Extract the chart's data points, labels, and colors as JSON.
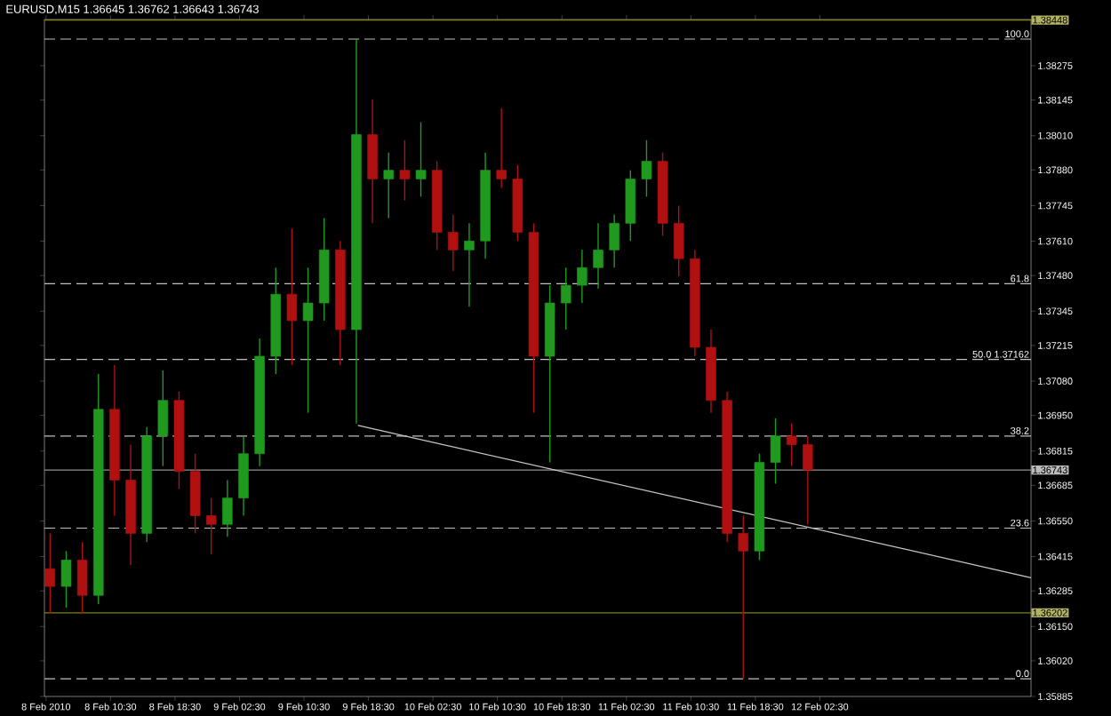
{
  "chart_data": {
    "type": "candlestick",
    "title": "EURUSD,M15  1.36645 1.36762 1.36643 1.36743",
    "x": [
      "2010-02-08T03:00",
      "2010-02-08T05:00",
      "2010-02-08T07:00",
      "2010-02-08T09:00",
      "2010-02-08T11:00",
      "2010-02-08T13:00",
      "2010-02-08T15:00",
      "2010-02-08T17:00",
      "2010-02-08T19:00",
      "2010-02-08T21:00",
      "2010-02-08T23:00",
      "2010-02-09T01:00",
      "2010-02-09T03:00",
      "2010-02-09T05:00",
      "2010-02-09T07:00",
      "2010-02-09T09:00",
      "2010-02-09T11:00",
      "2010-02-09T13:00",
      "2010-02-09T15:00",
      "2010-02-09T17:00",
      "2010-02-09T19:00",
      "2010-02-09T21:00",
      "2010-02-09T23:00",
      "2010-02-10T01:00",
      "2010-02-10T03:00",
      "2010-02-10T05:00",
      "2010-02-10T07:00",
      "2010-02-10T09:00",
      "2010-02-10T11:00",
      "2010-02-10T13:00",
      "2010-02-10T15:00",
      "2010-02-10T17:00",
      "2010-02-10T19:00",
      "2010-02-10T21:00",
      "2010-02-10T23:00",
      "2010-02-11T01:00",
      "2010-02-11T03:00",
      "2010-02-11T05:00",
      "2010-02-11T07:00",
      "2010-02-11T09:00",
      "2010-02-11T11:00",
      "2010-02-11T13:00",
      "2010-02-11T15:00",
      "2010-02-11T17:00",
      "2010-02-11T19:00",
      "2010-02-11T21:00",
      "2010-02-11T23:00",
      "2010-02-12T01:00"
    ],
    "ohlc": [
      [
        1.36369,
        1.36503,
        1.36201,
        1.36302
      ],
      [
        1.36302,
        1.36436,
        1.36221,
        1.36402
      ],
      [
        1.36402,
        1.3647,
        1.36201,
        1.36268
      ],
      [
        1.36268,
        1.37107,
        1.36235,
        1.36973
      ],
      [
        1.36973,
        1.37141,
        1.3657,
        1.36705
      ],
      [
        1.36705,
        1.36839,
        1.36382,
        1.36503
      ],
      [
        1.36503,
        1.36906,
        1.3647,
        1.36872
      ],
      [
        1.36872,
        1.37121,
        1.36758,
        1.37007
      ],
      [
        1.37007,
        1.3704,
        1.36671,
        1.36738
      ],
      [
        1.36738,
        1.36805,
        1.36503,
        1.3657
      ],
      [
        1.3657,
        1.36637,
        1.36423,
        1.36537
      ],
      [
        1.36537,
        1.36705,
        1.3649,
        1.36637
      ],
      [
        1.36637,
        1.36872,
        1.3657,
        1.36805
      ],
      [
        1.36805,
        1.37242,
        1.36758,
        1.37174
      ],
      [
        1.37174,
        1.3751,
        1.37107,
        1.37409
      ],
      [
        1.37409,
        1.37658,
        1.37141,
        1.37309
      ],
      [
        1.37309,
        1.3751,
        1.3696,
        1.37376
      ],
      [
        1.37376,
        1.37698,
        1.37309,
        1.37577
      ],
      [
        1.37577,
        1.37611,
        1.37141,
        1.37275
      ],
      [
        1.37275,
        1.38376,
        1.36919,
        1.38014
      ],
      [
        1.38014,
        1.38148,
        1.37678,
        1.37846
      ],
      [
        1.37846,
        1.37946,
        1.37698,
        1.37879
      ],
      [
        1.37879,
        1.37993,
        1.37765,
        1.37846
      ],
      [
        1.37846,
        1.38061,
        1.37779,
        1.37879
      ],
      [
        1.37879,
        1.37913,
        1.37577,
        1.37644
      ],
      [
        1.37644,
        1.37711,
        1.37497,
        1.37577
      ],
      [
        1.37577,
        1.37678,
        1.37362,
        1.37611
      ],
      [
        1.37611,
        1.37946,
        1.37544,
        1.37879
      ],
      [
        1.37879,
        1.38114,
        1.37812,
        1.37846
      ],
      [
        1.37846,
        1.37899,
        1.37611,
        1.37644
      ],
      [
        1.37644,
        1.37678,
        1.3696,
        1.37174
      ],
      [
        1.37174,
        1.37443,
        1.36772,
        1.37376
      ],
      [
        1.37376,
        1.3751,
        1.37275,
        1.37443
      ],
      [
        1.37443,
        1.37577,
        1.37376,
        1.3751
      ],
      [
        1.3751,
        1.37678,
        1.3743,
        1.37577
      ],
      [
        1.37577,
        1.37711,
        1.3751,
        1.37678
      ],
      [
        1.37678,
        1.37879,
        1.37611,
        1.37846
      ],
      [
        1.37846,
        1.37993,
        1.37779,
        1.37913
      ],
      [
        1.37913,
        1.37946,
        1.37631,
        1.37678
      ],
      [
        1.37678,
        1.37745,
        1.37477,
        1.37544
      ],
      [
        1.37544,
        1.37577,
        1.37174,
        1.37208
      ],
      [
        1.37208,
        1.37275,
        1.3696,
        1.37007
      ],
      [
        1.37007,
        1.3704,
        1.3647,
        1.36503
      ],
      [
        1.36503,
        1.3657,
        1.35952,
        1.36436
      ],
      [
        1.36436,
        1.36805,
        1.36402,
        1.36772
      ],
      [
        1.36772,
        1.36939,
        1.36691,
        1.36872
      ],
      [
        1.36872,
        1.36919,
        1.36758,
        1.36839
      ],
      [
        1.36839,
        1.36872,
        1.36537,
        1.36743
      ]
    ],
    "colors": [
      "#b01010",
      "#1f9a1f",
      "#b01010",
      "#1f9a1f",
      "#b01010",
      "#b01010",
      "#1f9a1f",
      "#1f9a1f",
      "#b01010",
      "#b01010",
      "#b01010",
      "#1f9a1f",
      "#1f9a1f",
      "#1f9a1f",
      "#1f9a1f",
      "#b01010",
      "#1f9a1f",
      "#1f9a1f",
      "#b01010",
      "#1f9a1f",
      "#b01010",
      "#1f9a1f",
      "#b01010",
      "#1f9a1f",
      "#b01010",
      "#b01010",
      "#1f9a1f",
      "#1f9a1f",
      "#b01010",
      "#b01010",
      "#b01010",
      "#1f9a1f",
      "#1f9a1f",
      "#1f9a1f",
      "#1f9a1f",
      "#1f9a1f",
      "#1f9a1f",
      "#1f9a1f",
      "#b01010",
      "#b01010",
      "#b01010",
      "#b01010",
      "#b01010",
      "#b01010",
      "#1f9a1f",
      "#1f9a1f",
      "#b01010",
      "#b01010"
    ],
    "series": [
      {
        "type": "line",
        "color": "#c8c8c8",
        "x": [
          "2010-02-09T17:12",
          "2010-02-13T04:42"
        ],
        "values": [
          1.36912,
          1.36335
        ]
      }
    ],
    "xlim": [
      "2010-02-08T02:18",
      "2010-02-13T04:42"
    ],
    "ylim": [
      1.35885,
      1.3845
    ],
    "xticks": [
      {
        "value": "2010-02-08T02:30",
        "label": "8 Feb 2010"
      },
      {
        "value": "2010-02-08T10:30",
        "label": "8 Feb 10:30"
      },
      {
        "value": "2010-02-08T18:30",
        "label": "8 Feb 18:30"
      },
      {
        "value": "2010-02-09T02:30",
        "label": "9 Feb 02:30"
      },
      {
        "value": "2010-02-09T10:30",
        "label": "9 Feb 10:30"
      },
      {
        "value": "2010-02-09T18:30",
        "label": "9 Feb 18:30"
      },
      {
        "value": "2010-02-10T02:30",
        "label": "10 Feb 02:30"
      },
      {
        "value": "2010-02-10T10:30",
        "label": "10 Feb 10:30"
      },
      {
        "value": "2010-02-10T18:30",
        "label": "10 Feb 18:30"
      },
      {
        "value": "2010-02-11T02:30",
        "label": "11 Feb 02:30"
      },
      {
        "value": "2010-02-11T10:30",
        "label": "11 Feb 10:30"
      },
      {
        "value": "2010-02-11T18:30",
        "label": "11 Feb 18:30"
      },
      {
        "value": "2010-02-12T02:30",
        "label": "12 Feb 02:30"
      }
    ],
    "yticks": [
      {
        "value": 1.35885,
        "label": "1.35885"
      },
      {
        "value": 1.3602,
        "label": "1.36020"
      },
      {
        "value": 1.3615,
        "label": "1.36150"
      },
      {
        "value": 1.36285,
        "label": "1.36285"
      },
      {
        "value": 1.36415,
        "label": "1.36415"
      },
      {
        "value": 1.3655,
        "label": "1.36550"
      },
      {
        "value": 1.36685,
        "label": "1.36685"
      },
      {
        "value": 1.36815,
        "label": "1.36815"
      },
      {
        "value": 1.3695,
        "label": "1.36950"
      },
      {
        "value": 1.3708,
        "label": "1.37080"
      },
      {
        "value": 1.37215,
        "label": "1.37215"
      },
      {
        "value": 1.37345,
        "label": "1.37345"
      },
      {
        "value": 1.3748,
        "label": "1.37480"
      },
      {
        "value": 1.3761,
        "label": "1.37610"
      },
      {
        "value": 1.37745,
        "label": "1.37745"
      },
      {
        "value": 1.3788,
        "label": "1.37880"
      },
      {
        "value": 1.3801,
        "label": "1.38010"
      },
      {
        "value": 1.38145,
        "label": "1.38145"
      },
      {
        "value": 1.38275,
        "label": "1.38275"
      }
    ],
    "ref_lines": [
      {
        "axis": "y",
        "value": 1.38448,
        "label": "1.38448",
        "color": "#808000",
        "line_style": "solid"
      },
      {
        "axis": "y",
        "value": 1.36743,
        "label": "1.36743",
        "color": "#909090",
        "line_style": "solid"
      },
      {
        "axis": "y",
        "value": 1.36202,
        "label": "1.36202",
        "color": "#808000",
        "line_style": "solid"
      },
      {
        "axis": "y",
        "value": 1.38376,
        "color": "#c0c0c0",
        "line_style": "dashed"
      },
      {
        "axis": "y",
        "value": 1.37449,
        "color": "#c0c0c0",
        "line_style": "dashed"
      },
      {
        "axis": "y",
        "value": 1.37162,
        "label": "50.0 1.37162",
        "color": "#c0c0c0",
        "line_style": "dashed"
      },
      {
        "axis": "y",
        "value": 1.36872,
        "color": "#c0c0c0",
        "line_style": "dashed"
      },
      {
        "axis": "y",
        "value": 1.36523,
        "color": "#c0c0c0",
        "line_style": "dashed"
      },
      {
        "axis": "y",
        "value": 1.35952,
        "color": "#c0c0c0",
        "line_style": "dashed"
      }
    ],
    "annotations": [
      {
        "text": "100.0",
        "x": "2010-02-13T04:42",
        "y": 1.38376
      },
      {
        "text": "61.8",
        "x": "2010-02-13T04:42",
        "y": 1.37449
      },
      {
        "text": "38.2",
        "x": "2010-02-13T04:42",
        "y": 1.36872
      },
      {
        "text": "23.6",
        "x": "2010-02-13T04:42",
        "y": 1.36523
      },
      {
        "text": "0.0",
        "x": "2010-02-13T04:42",
        "y": 1.35952
      }
    ]
  }
}
